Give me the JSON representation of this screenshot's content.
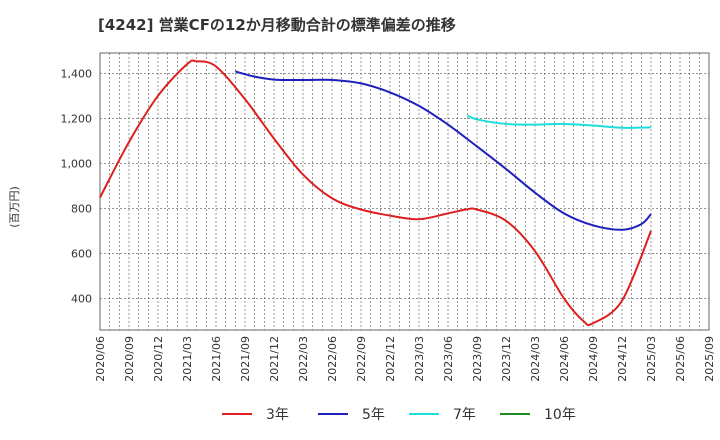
{
  "chart_data": {
    "type": "line",
    "title": "[4242]  営業CFの12か月移動合計の標準偏差の推移",
    "ylabel": "(百万円)",
    "xlabel": "",
    "ylim": [
      260,
      1490
    ],
    "yticks": [
      400,
      600,
      800,
      1000,
      1200,
      1400
    ],
    "ytick_labels": [
      "400",
      "600",
      "800",
      "1,000",
      "1,200",
      "1,400"
    ],
    "xlim": [
      "2020/06",
      "2025/09"
    ],
    "categories": [
      "2020/06",
      "2020/09",
      "2020/12",
      "2021/03",
      "2021/06",
      "2021/09",
      "2021/12",
      "2022/03",
      "2022/06",
      "2022/09",
      "2022/12",
      "2023/03",
      "2023/06",
      "2023/09",
      "2023/12",
      "2024/03",
      "2024/06",
      "2024/09",
      "2024/12",
      "2025/03",
      "2025/06",
      "2025/09"
    ],
    "grid": true,
    "legend_position": "bottom",
    "series": [
      {
        "name": "3年",
        "color": "#dd1f1f",
        "points": [
          [
            "2020/06",
            848
          ],
          [
            "2020/09",
            1095
          ],
          [
            "2020/12",
            1300
          ],
          [
            "2021/03",
            1440
          ],
          [
            "2021/04",
            1453
          ],
          [
            "2021/06",
            1430
          ],
          [
            "2021/09",
            1285
          ],
          [
            "2021/12",
            1110
          ],
          [
            "2022/03",
            950
          ],
          [
            "2022/06",
            845
          ],
          [
            "2022/09",
            795
          ],
          [
            "2022/12",
            768
          ],
          [
            "2023/03",
            752
          ],
          [
            "2023/06",
            778
          ],
          [
            "2023/08",
            796
          ],
          [
            "2023/09",
            795
          ],
          [
            "2023/12",
            745
          ],
          [
            "2024/03",
            610
          ],
          [
            "2024/06",
            400
          ],
          [
            "2024/08",
            300
          ],
          [
            "2024/09",
            290
          ],
          [
            "2024/12",
            390
          ],
          [
            "2025/03",
            700
          ]
        ]
      },
      {
        "name": "5年",
        "color": "#1f1fbb",
        "points": [
          [
            "2021/08",
            1408
          ],
          [
            "2021/10",
            1385
          ],
          [
            "2021/12",
            1372
          ],
          [
            "2022/03",
            1370
          ],
          [
            "2022/06",
            1370
          ],
          [
            "2022/09",
            1355
          ],
          [
            "2022/12",
            1315
          ],
          [
            "2023/03",
            1255
          ],
          [
            "2023/06",
            1172
          ],
          [
            "2023/09",
            1075
          ],
          [
            "2023/12",
            975
          ],
          [
            "2024/03",
            870
          ],
          [
            "2024/06",
            778
          ],
          [
            "2024/09",
            725
          ],
          [
            "2024/12",
            705
          ],
          [
            "2025/02",
            730
          ],
          [
            "2025/03",
            775
          ]
        ]
      },
      {
        "name": "7年",
        "color": "#1fdddd",
        "points": [
          [
            "2023/08",
            1213
          ],
          [
            "2023/09",
            1195
          ],
          [
            "2023/12",
            1175
          ],
          [
            "2024/03",
            1172
          ],
          [
            "2024/06",
            1175
          ],
          [
            "2024/09",
            1168
          ],
          [
            "2024/12",
            1158
          ],
          [
            "2025/03",
            1160
          ]
        ]
      },
      {
        "name": "10年",
        "color": "#1f8b1f",
        "points": []
      }
    ]
  }
}
